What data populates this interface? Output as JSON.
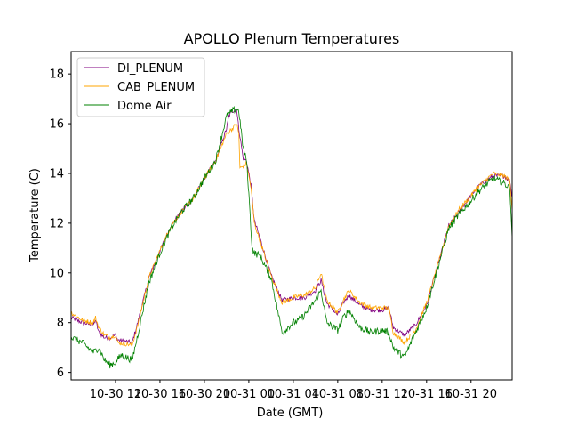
{
  "chart_data": {
    "type": "line",
    "title": "APOLLO Plenum Temperatures",
    "xlabel": "Date (GMT)",
    "ylabel": "Temperature (C)",
    "x_unit": "hours since 2018-10-30 08:00 GMT",
    "xlim": [
      0,
      39.7
    ],
    "ylim": [
      5.7,
      18.9
    ],
    "x_ticks": [
      {
        "x": 4,
        "label": "10-30 12"
      },
      {
        "x": 8,
        "label": "10-30 16"
      },
      {
        "x": 12,
        "label": "10-30 20"
      },
      {
        "x": 16,
        "label": "10-31 00"
      },
      {
        "x": 20,
        "label": "10-31 04"
      },
      {
        "x": 24,
        "label": "10-31 08"
      },
      {
        "x": 28,
        "label": "10-31 12"
      },
      {
        "x": 32,
        "label": "10-31 16"
      },
      {
        "x": 36,
        "label": "10-31 20"
      }
    ],
    "y_ticks": [
      6,
      8,
      10,
      12,
      14,
      16,
      18
    ],
    "legend_position": "top-left",
    "series": [
      {
        "name": "DI_PLENUM",
        "color": "#800080",
        "x": [
          0,
          1,
          2,
          2.2,
          2.5,
          3,
          3.5,
          4,
          4.2,
          5.5,
          6,
          7,
          8,
          9,
          10,
          11,
          12,
          13,
          14,
          14.2,
          14.5,
          14.9,
          15.1,
          15.5,
          15.8,
          16.2,
          16.5,
          17,
          18,
          19,
          20,
          20.7,
          21,
          22,
          22.5,
          23,
          24,
          24.5,
          25,
          26,
          27,
          28,
          28.6,
          29,
          30,
          31,
          32,
          33,
          34,
          35,
          36,
          36.5,
          37,
          38,
          39,
          39.5,
          39.7
        ],
        "y": [
          8.2,
          8.0,
          7.9,
          8.1,
          7.6,
          7.4,
          7.4,
          7.5,
          7.3,
          7.2,
          8.0,
          9.8,
          10.9,
          11.9,
          12.5,
          13.0,
          13.8,
          14.5,
          15.8,
          16.3,
          16.5,
          16.6,
          15.8,
          14.6,
          14.5,
          13.5,
          12.1,
          11.4,
          9.9,
          8.9,
          9.0,
          9.0,
          9.0,
          9.3,
          9.7,
          8.8,
          8.3,
          8.8,
          9.1,
          8.7,
          8.5,
          8.5,
          8.6,
          7.8,
          7.5,
          7.9,
          8.7,
          10.3,
          11.9,
          12.5,
          13.1,
          13.4,
          13.6,
          13.9,
          13.9,
          13.7,
          13.0
        ]
      },
      {
        "name": "CAB_PLENUM",
        "color": "#ffa500",
        "x": [
          0,
          1,
          2,
          2.2,
          2.5,
          3,
          3.5,
          4,
          4.2,
          5.5,
          6,
          7,
          8,
          9,
          10,
          11,
          12,
          13,
          14,
          14.5,
          14.9,
          15.1,
          15.2,
          15.5,
          15.8,
          16.2,
          16.5,
          17,
          18,
          19,
          20,
          20.7,
          21,
          22,
          22.5,
          23,
          24,
          24.5,
          25,
          26,
          27,
          28,
          28.6,
          29,
          30,
          31,
          32,
          33,
          34,
          35,
          36,
          36.5,
          37,
          38,
          39,
          39.5,
          39.7
        ],
        "y": [
          8.4,
          8.1,
          8.0,
          8.2,
          7.8,
          7.5,
          7.4,
          7.5,
          7.2,
          7.1,
          7.9,
          9.8,
          10.9,
          11.9,
          12.5,
          13.0,
          13.8,
          14.5,
          15.6,
          15.8,
          16.0,
          15.6,
          14.2,
          14.3,
          14.4,
          13.4,
          12.0,
          11.3,
          9.9,
          8.8,
          9.0,
          9.1,
          9.1,
          9.4,
          10.0,
          8.9,
          8.4,
          8.9,
          9.3,
          8.8,
          8.6,
          8.6,
          8.6,
          7.6,
          7.2,
          7.7,
          8.8,
          10.3,
          11.9,
          12.6,
          13.1,
          13.4,
          13.6,
          14.0,
          13.9,
          13.7,
          12.5
        ]
      },
      {
        "name": "Dome Air",
        "color": "#008000",
        "x": [
          0,
          1,
          2,
          2.5,
          3,
          3.5,
          4,
          4.5,
          5.5,
          6,
          7,
          8,
          9,
          10,
          11,
          12,
          13,
          14,
          14.5,
          14.9,
          15.1,
          15.5,
          15.8,
          16,
          16.3,
          16.5,
          17,
          18,
          19,
          20,
          20.5,
          21,
          22,
          22.5,
          23,
          24,
          24.5,
          25,
          26,
          27,
          28,
          28.6,
          29,
          30,
          31,
          32,
          33,
          34,
          35,
          36,
          36.5,
          37,
          38,
          39,
          39.5,
          39.7
        ],
        "y": [
          7.4,
          7.2,
          6.8,
          7.0,
          6.5,
          6.3,
          6.4,
          6.7,
          6.5,
          7.5,
          9.6,
          10.8,
          11.8,
          12.5,
          13.0,
          13.8,
          14.5,
          16.3,
          16.5,
          16.6,
          16.5,
          15.0,
          14.5,
          13.2,
          11.0,
          10.8,
          10.7,
          9.8,
          7.6,
          8.0,
          8.1,
          8.3,
          8.9,
          9.3,
          8.0,
          7.7,
          8.2,
          8.5,
          7.8,
          7.6,
          7.7,
          7.6,
          7.0,
          6.6,
          7.6,
          8.6,
          10.2,
          11.8,
          12.4,
          12.9,
          13.2,
          13.4,
          13.8,
          13.6,
          13.4,
          11.4
        ]
      }
    ]
  }
}
